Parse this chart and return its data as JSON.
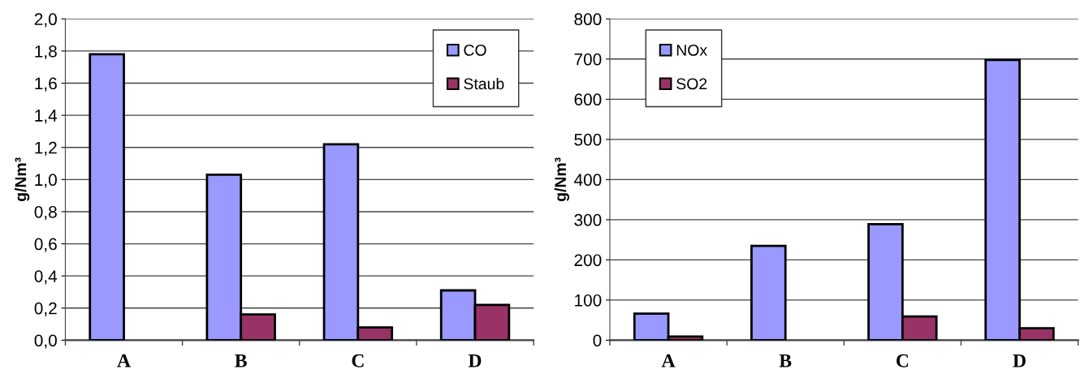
{
  "chart_data": [
    {
      "type": "bar",
      "ylabel": "g/Nm³",
      "categories": [
        "A",
        "B",
        "C",
        "D"
      ],
      "series": [
        {
          "name": "CO",
          "color": "#9999ff",
          "values": [
            1.78,
            1.03,
            1.22,
            0.31
          ]
        },
        {
          "name": "Staub",
          "color": "#993366",
          "values": [
            null,
            0.16,
            0.08,
            0.22
          ]
        }
      ],
      "ylim": [
        0,
        2.0
      ],
      "yticks": [
        {
          "value": 0,
          "label": "0,0"
        },
        {
          "value": 0.2,
          "label": "0,2"
        },
        {
          "value": 0.4,
          "label": "0,4"
        },
        {
          "value": 0.6,
          "label": "0,6"
        },
        {
          "value": 0.8,
          "label": "0,8"
        },
        {
          "value": 1.0,
          "label": "1,0"
        },
        {
          "value": 1.2,
          "label": "1,2"
        },
        {
          "value": 1.4,
          "label": "1,4"
        },
        {
          "value": 1.6,
          "label": "1,6"
        },
        {
          "value": 1.8,
          "label": "1,8"
        },
        {
          "value": 2.0,
          "label": "2,0"
        }
      ],
      "grid": "y",
      "legend": "top right"
    },
    {
      "type": "bar",
      "ylabel": "g/Nm³",
      "categories": [
        "A",
        "B",
        "C",
        "D"
      ],
      "series": [
        {
          "name": "NOx",
          "color": "#9999ff",
          "values": [
            66,
            235,
            289,
            698
          ]
        },
        {
          "name": "SO2",
          "color": "#993366",
          "values": [
            9,
            null,
            59,
            30
          ]
        }
      ],
      "ylim": [
        0,
        800
      ],
      "yticks": [
        0,
        100,
        200,
        300,
        400,
        500,
        600,
        700,
        800
      ],
      "grid": "y",
      "legend": "top left"
    }
  ]
}
